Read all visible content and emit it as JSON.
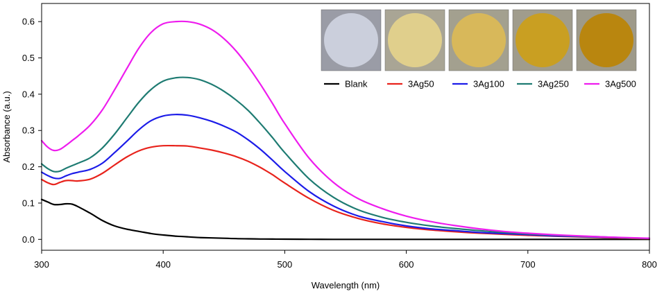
{
  "chart_data": {
    "type": "line",
    "title": "",
    "xlabel": "Wavelength (nm)",
    "ylabel": "Absorbance (a.u.)",
    "xlim": [
      300,
      800
    ],
    "ylim": [
      -0.03,
      0.65
    ],
    "xticks": [
      300,
      400,
      500,
      600,
      700,
      800
    ],
    "xtick_labels": [
      "300",
      "400",
      "500",
      "600",
      "700",
      "800"
    ],
    "yticks": [
      0.0,
      0.1,
      0.2,
      0.3,
      0.4,
      0.5,
      0.6
    ],
    "ytick_labels": [
      "0.0",
      "0.1",
      "0.2",
      "0.3",
      "0.4",
      "0.5",
      "0.6"
    ],
    "grid": false,
    "legend_position": "top-right",
    "x": [
      300,
      305,
      310,
      315,
      320,
      325,
      330,
      340,
      350,
      360,
      370,
      380,
      390,
      400,
      410,
      420,
      430,
      440,
      450,
      460,
      470,
      480,
      490,
      500,
      520,
      540,
      560,
      580,
      600,
      620,
      640,
      660,
      680,
      700,
      720,
      740,
      760,
      780,
      800
    ],
    "series": [
      {
        "name": "Blank",
        "color": "#000000",
        "values": [
          0.11,
          0.103,
          0.096,
          0.096,
          0.098,
          0.097,
          0.09,
          0.072,
          0.052,
          0.037,
          0.028,
          0.022,
          0.016,
          0.012,
          0.009,
          0.007,
          0.005,
          0.004,
          0.003,
          0.002,
          0.0015,
          0.001,
          0.0008,
          0.0005,
          0.0002,
          0,
          0,
          0,
          0,
          0,
          0,
          0,
          0,
          0,
          0,
          0,
          0,
          0,
          0
        ]
      },
      {
        "name": "3Ag50",
        "color": "#e8231c",
        "values": [
          0.165,
          0.156,
          0.151,
          0.157,
          0.162,
          0.162,
          0.161,
          0.166,
          0.182,
          0.205,
          0.227,
          0.244,
          0.254,
          0.258,
          0.258,
          0.257,
          0.252,
          0.246,
          0.238,
          0.228,
          0.215,
          0.198,
          0.178,
          0.155,
          0.113,
          0.08,
          0.058,
          0.043,
          0.033,
          0.026,
          0.021,
          0.017,
          0.014,
          0.011,
          0.009,
          0.007,
          0.005,
          0.003,
          0.002
        ]
      },
      {
        "name": "3Ag100",
        "color": "#1c1ce8",
        "values": [
          0.185,
          0.176,
          0.169,
          0.168,
          0.175,
          0.181,
          0.185,
          0.193,
          0.21,
          0.239,
          0.27,
          0.302,
          0.327,
          0.34,
          0.344,
          0.342,
          0.335,
          0.325,
          0.312,
          0.296,
          0.274,
          0.248,
          0.218,
          0.187,
          0.132,
          0.092,
          0.065,
          0.049,
          0.037,
          0.029,
          0.024,
          0.019,
          0.016,
          0.013,
          0.01,
          0.008,
          0.006,
          0.004,
          0.003
        ]
      },
      {
        "name": "3Ag250",
        "color": "#1e7b72",
        "values": [
          0.208,
          0.195,
          0.187,
          0.188,
          0.196,
          0.203,
          0.21,
          0.225,
          0.252,
          0.29,
          0.334,
          0.378,
          0.413,
          0.436,
          0.445,
          0.446,
          0.44,
          0.427,
          0.408,
          0.384,
          0.355,
          0.319,
          0.28,
          0.239,
          0.167,
          0.116,
          0.082,
          0.061,
          0.047,
          0.037,
          0.03,
          0.024,
          0.019,
          0.015,
          0.012,
          0.009,
          0.007,
          0.004,
          0.003
        ]
      },
      {
        "name": "3Ag500",
        "color": "#ee1cee",
        "values": [
          0.272,
          0.254,
          0.245,
          0.248,
          0.259,
          0.272,
          0.285,
          0.315,
          0.357,
          0.412,
          0.47,
          0.527,
          0.57,
          0.594,
          0.6,
          0.6,
          0.593,
          0.578,
          0.553,
          0.519,
          0.476,
          0.427,
          0.374,
          0.319,
          0.224,
          0.157,
          0.113,
          0.085,
          0.064,
          0.049,
          0.038,
          0.029,
          0.022,
          0.017,
          0.013,
          0.01,
          0.007,
          0.005,
          0.003
        ]
      }
    ],
    "inset_samples": [
      {
        "name": "Blank",
        "color": "#cbcfdc",
        "background": "#9a9ca6"
      },
      {
        "name": "3Ag50",
        "color": "#e0cf8c",
        "background": "#a9a595"
      },
      {
        "name": "3Ag100",
        "color": "#d8b85a",
        "background": "#a3a08f"
      },
      {
        "name": "3Ag250",
        "color": "#c99f22",
        "background": "#a09c8c"
      },
      {
        "name": "3Ag500",
        "color": "#b9860f",
        "background": "#9e9a8a"
      }
    ]
  }
}
